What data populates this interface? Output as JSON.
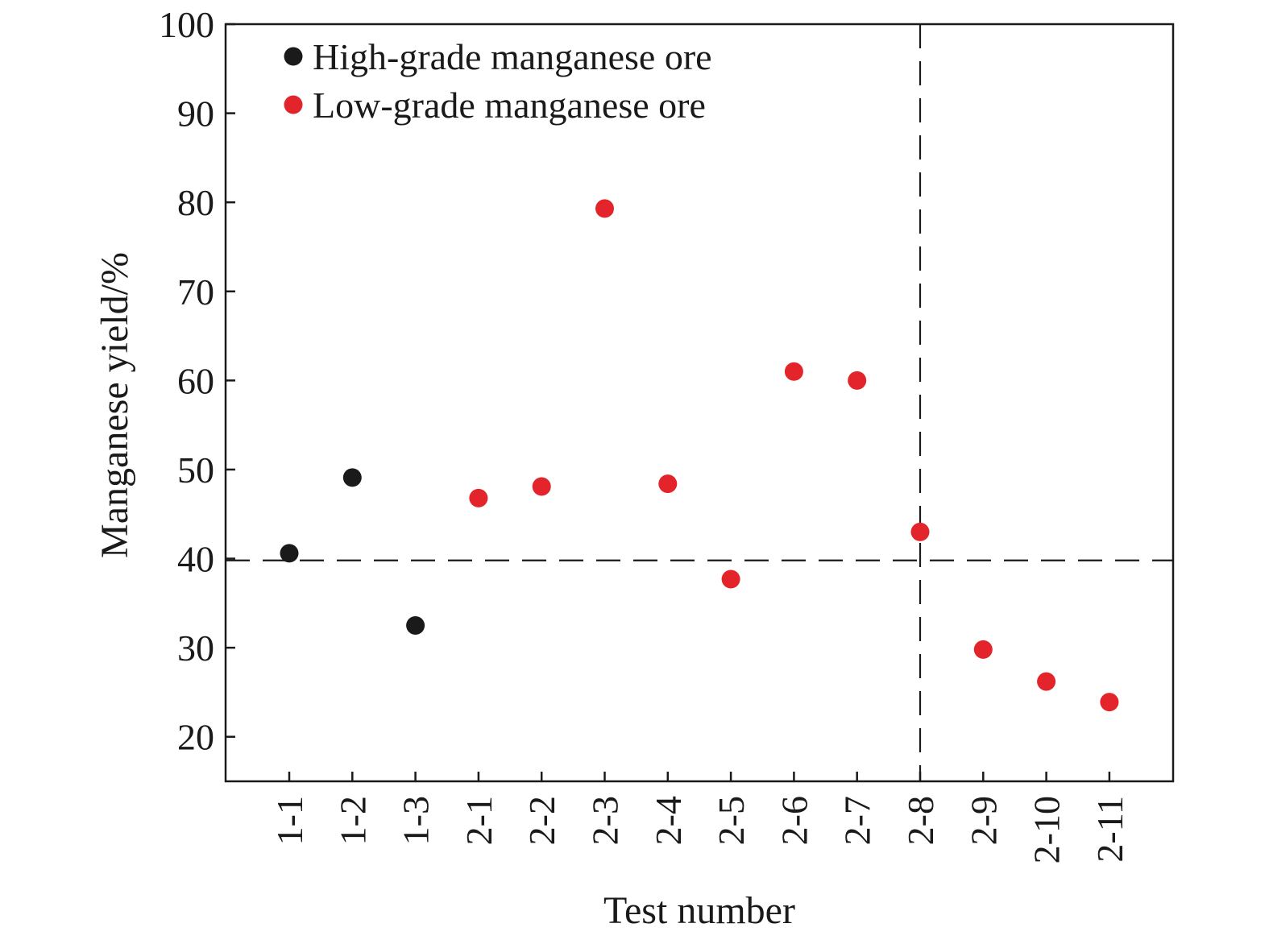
{
  "chart_data": {
    "type": "scatter",
    "xlabel": "Test number",
    "ylabel": "Manganese yield/%",
    "ylim": [
      15,
      100
    ],
    "yticks": [
      20,
      30,
      40,
      50,
      60,
      70,
      80,
      90,
      100
    ],
    "categories": [
      "1-1",
      "1-2",
      "1-3",
      "2-1",
      "2-2",
      "2-3",
      "2-4",
      "2-5",
      "2-6",
      "2-7",
      "2-8",
      "2-9",
      "2-10",
      "2-11"
    ],
    "series": [
      {
        "name": "High-grade manganese ore",
        "color": "#1a1a1a",
        "points": [
          {
            "x": "1-1",
            "y": 40.6
          },
          {
            "x": "1-2",
            "y": 49.1
          },
          {
            "x": "1-3",
            "y": 32.5
          }
        ]
      },
      {
        "name": "Low-grade manganese ore",
        "color": "#e3242b",
        "points": [
          {
            "x": "2-1",
            "y": 46.8
          },
          {
            "x": "2-2",
            "y": 48.1
          },
          {
            "x": "2-3",
            "y": 79.3
          },
          {
            "x": "2-4",
            "y": 48.4
          },
          {
            "x": "2-5",
            "y": 37.7
          },
          {
            "x": "2-6",
            "y": 61.0
          },
          {
            "x": "2-7",
            "y": 60.0
          },
          {
            "x": "2-8",
            "y": 43.0
          },
          {
            "x": "2-9",
            "y": 29.8
          },
          {
            "x": "2-10",
            "y": 26.2
          },
          {
            "x": "2-11",
            "y": 23.9
          }
        ]
      }
    ],
    "reference_lines": [
      {
        "axis": "y",
        "value": 39.8,
        "style": "dashed"
      },
      {
        "axis": "x",
        "value": "2-8",
        "style": "dashed"
      }
    ],
    "legend": {
      "placement": "top-left"
    },
    "grid": false
  }
}
